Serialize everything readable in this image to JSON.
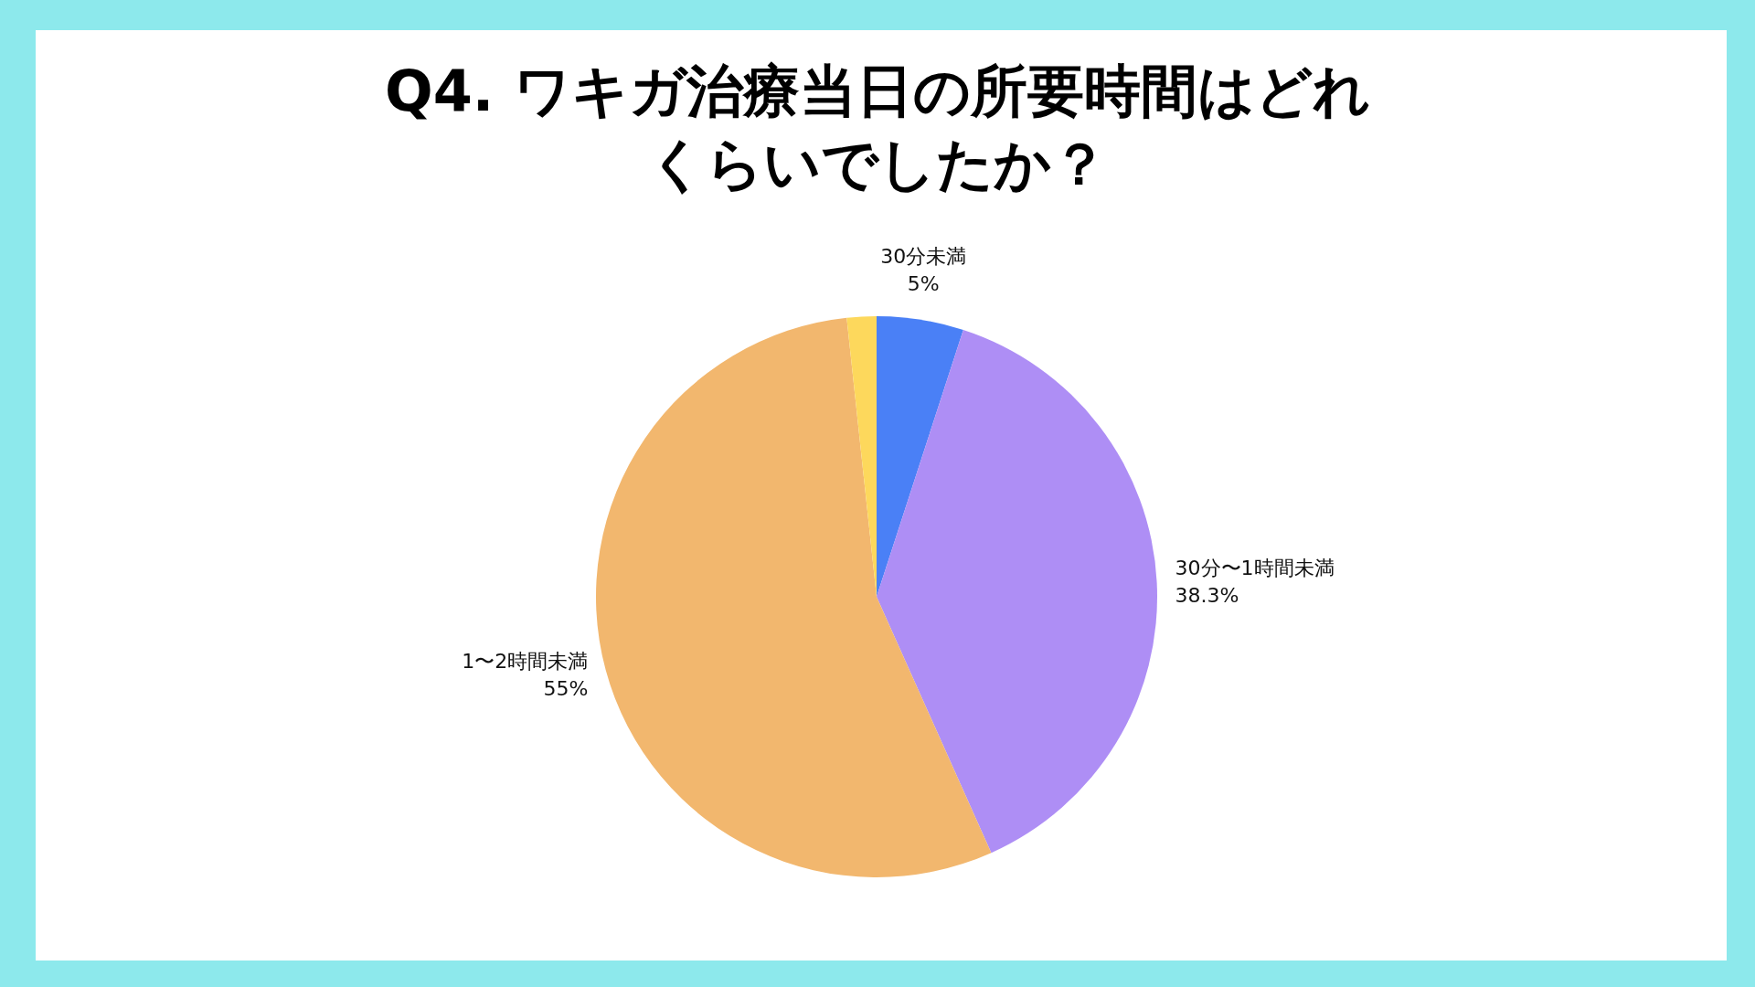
{
  "chart_data": {
    "type": "pie",
    "title": "Q4. ワキガ治療当日の所要時間はどれくらいでしたか？",
    "categories": [
      "30分未満",
      "30分〜1時間未満",
      "1〜2時間未満",
      null
    ],
    "values": [
      5,
      38.3,
      55,
      1.7
    ],
    "value_labels": [
      "5%",
      "38.3%",
      "55%",
      null
    ],
    "colors": [
      "#4a80f6",
      "#ae8ef5",
      "#f2b76e",
      "#fdd85c"
    ]
  }
}
